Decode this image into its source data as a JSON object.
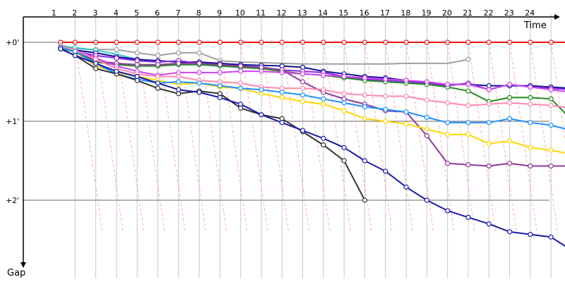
{
  "chart_data": {
    "type": "line",
    "x_axis_label": "Time",
    "y_axis_label": "Gap",
    "x_ticks": [
      "1",
      "2",
      "3",
      "4",
      "5",
      "6",
      "7",
      "8",
      "9",
      "10",
      "11",
      "12",
      "13",
      "14",
      "15",
      "16",
      "17",
      "18",
      "19",
      "20",
      "21",
      "22",
      "23",
      "24"
    ],
    "x_range": [
      0.25,
      25.6
    ],
    "y_ticks": [
      "+0'",
      "+1'",
      "+2'"
    ],
    "y_tick_values": [
      0,
      60,
      120
    ],
    "y_range": [
      -6,
      160
    ],
    "grid": true,
    "grid_x_color": "#c8c8c8",
    "grid_y_color": "#646464",
    "annotation_line_color": "#ff9a9a",
    "series": [
      {
        "color": "#ee1111",
        "x": [
          0.3,
          1,
          2,
          3,
          4,
          5,
          6,
          7,
          8,
          9,
          10,
          11,
          12,
          13,
          14,
          15,
          16,
          17,
          18,
          19,
          20,
          21,
          22,
          23,
          24,
          25
        ],
        "y": [
          0,
          0,
          0,
          0,
          0,
          0,
          0,
          0,
          0,
          0,
          0,
          0,
          0,
          0,
          0,
          0,
          0,
          0,
          0,
          0,
          0,
          0,
          0,
          0,
          0,
          0
        ],
        "markers": [
          0.3,
          1,
          2,
          3,
          4,
          5,
          6,
          7,
          8,
          9,
          10,
          11,
          12,
          13,
          14,
          15,
          16,
          17,
          18,
          19,
          20,
          21,
          22,
          23,
          24,
          25
        ]
      },
      {
        "color": "#a0a0a0",
        "x": [
          0.3,
          1,
          2,
          3,
          4,
          5,
          6,
          7,
          8,
          9,
          10,
          11,
          12,
          13,
          14,
          15,
          16,
          17,
          18,
          19,
          20
        ],
        "y": [
          2,
          5,
          5.5,
          5.5,
          8,
          10,
          8,
          8,
          14,
          15,
          15.5,
          16,
          16.5,
          16.5,
          16.5,
          16.5,
          16.5,
          16,
          16,
          16,
          13
        ],
        "markers": [
          0.3,
          2,
          3,
          4,
          5,
          6,
          7,
          8,
          20
        ]
      },
      {
        "color": "#30c8c8",
        "x": [
          0.3,
          1,
          2,
          3,
          4
        ],
        "y": [
          3,
          4,
          6,
          9,
          13
        ],
        "markers": [
          0.3,
          1,
          2,
          3,
          4
        ]
      },
      {
        "color": "#111199",
        "x": [
          0.3,
          1,
          2,
          3,
          4,
          5,
          6,
          7,
          8,
          9,
          10,
          11,
          12,
          13,
          14,
          15,
          16,
          17,
          18,
          19,
          20,
          21,
          22,
          23,
          24,
          25
        ],
        "y": [
          4,
          6,
          8,
          11,
          13,
          14,
          15,
          15,
          16,
          17,
          17.5,
          18,
          19,
          22,
          24,
          26,
          27,
          29,
          31,
          32,
          32,
          33,
          33,
          33,
          34,
          35
        ],
        "markers": [
          0.3,
          1,
          2,
          3,
          4,
          5,
          6,
          7,
          8,
          9,
          10,
          11,
          12,
          13,
          14,
          15,
          16,
          17,
          18,
          19,
          20,
          21,
          22,
          23,
          24,
          25
        ]
      },
      {
        "color": "#8a2be2",
        "x": [
          0.3,
          1,
          2,
          3,
          4,
          5,
          6,
          7,
          8,
          9,
          10,
          11,
          12,
          13,
          14,
          15,
          16,
          17,
          18,
          19,
          20,
          21,
          22,
          23,
          24,
          25
        ],
        "y": [
          3,
          7,
          10,
          12,
          14,
          15,
          14,
          16,
          17,
          18,
          19,
          21,
          22,
          23,
          26,
          28,
          29,
          30,
          31,
          33,
          31,
          36,
          32,
          34,
          35,
          36
        ],
        "markers": [
          0.3,
          1,
          2,
          3,
          4,
          5,
          6,
          7,
          8,
          9,
          10,
          11,
          12,
          13,
          14,
          15,
          16,
          17,
          18,
          19,
          20,
          21,
          22,
          23,
          24,
          25
        ]
      },
      {
        "color": "#228b22",
        "x": [
          0.3,
          1,
          2,
          3,
          4,
          5,
          6,
          7,
          8,
          9,
          10,
          11,
          12,
          13,
          14,
          15,
          16,
          17,
          18,
          19,
          20,
          21,
          22,
          23,
          24,
          25
        ],
        "y": [
          5,
          7,
          15,
          17,
          18,
          18,
          17,
          17,
          18,
          19,
          20,
          22,
          24,
          25,
          27,
          29,
          30,
          31,
          32,
          34,
          37,
          45,
          42,
          42,
          43,
          59
        ],
        "markers": [
          0.3,
          1,
          2,
          3,
          4,
          5,
          6,
          7,
          8,
          9,
          10,
          11,
          12,
          13,
          14,
          15,
          16,
          17,
          18,
          19,
          20,
          21,
          22,
          23,
          24,
          25
        ]
      },
      {
        "color": "#8b3a9a",
        "x": [
          0.3,
          1,
          2,
          3,
          4,
          5,
          6,
          7,
          8,
          9,
          10,
          11,
          12,
          13,
          14,
          15,
          16,
          17,
          18,
          19,
          20,
          21,
          22,
          23,
          24,
          25
        ],
        "y": [
          4,
          6,
          14,
          16,
          17,
          17,
          16,
          16,
          17,
          18,
          19,
          21,
          30,
          38,
          43,
          47,
          52,
          53,
          71,
          92,
          93,
          94,
          92,
          94,
          94,
          94
        ],
        "markers": [
          0.3,
          1,
          2,
          3,
          4,
          5,
          6,
          7,
          8,
          9,
          10,
          11,
          12,
          13,
          14,
          15,
          16,
          17,
          18,
          19,
          20,
          21,
          22,
          23,
          24,
          25
        ]
      },
      {
        "color": "#cc44ee",
        "x": [
          0.3,
          1,
          2,
          3,
          4,
          5,
          6,
          7,
          8,
          9,
          10,
          11,
          12,
          13,
          14,
          15,
          16,
          17,
          18,
          19,
          20,
          21,
          22,
          23,
          24,
          25
        ],
        "y": [
          3,
          6,
          12,
          18,
          22,
          25,
          23,
          23,
          23,
          22,
          22,
          23,
          24,
          25,
          26,
          27,
          28,
          29,
          30,
          32,
          32,
          36,
          32,
          34,
          36,
          38
        ],
        "markers": [
          0.3,
          1,
          2,
          3,
          4,
          5,
          6,
          7,
          8,
          9,
          10,
          11,
          12,
          13,
          14,
          15,
          16,
          17,
          18,
          19,
          20,
          21,
          22,
          23,
          24,
          25
        ]
      },
      {
        "color": "#ff88b0",
        "x": [
          0.3,
          1,
          2,
          3,
          4,
          5,
          6,
          7,
          8,
          9,
          10,
          11,
          12,
          13,
          14,
          15,
          16,
          17,
          18,
          19,
          20,
          21,
          22,
          23,
          24,
          25
        ],
        "y": [
          3,
          6,
          13,
          20,
          24,
          26,
          26,
          29,
          30,
          31,
          34,
          35,
          35,
          36,
          39,
          40,
          41,
          41,
          44,
          46,
          48,
          47,
          46,
          47,
          48,
          50
        ],
        "markers": [
          0.3,
          1,
          2,
          3,
          4,
          5,
          6,
          7,
          8,
          9,
          10,
          11,
          12,
          13,
          14,
          15,
          16,
          17,
          18,
          19,
          20,
          21,
          22,
          23,
          24,
          25
        ]
      },
      {
        "color": "#ffd700",
        "x": [
          0.3,
          1,
          2,
          3,
          4,
          5,
          6,
          7,
          8,
          9,
          10,
          11,
          12,
          13,
          14,
          15,
          16,
          17,
          18,
          19,
          20,
          21,
          22,
          23,
          24,
          25
        ],
        "y": [
          4,
          7,
          18,
          23,
          26,
          29,
          32,
          31,
          34,
          35,
          39,
          42,
          45,
          47,
          52,
          58,
          60,
          62,
          66,
          70,
          70,
          77,
          75,
          80,
          82,
          85
        ],
        "markers": [
          0.3,
          1,
          2,
          3,
          4,
          5,
          6,
          7,
          8,
          9,
          10,
          11,
          12,
          13,
          14,
          15,
          16,
          17,
          18,
          19,
          20,
          21,
          22,
          23,
          24,
          25
        ]
      },
      {
        "color": "#1e90ff",
        "x": [
          0.3,
          1,
          2,
          3,
          4,
          5,
          6,
          7,
          8,
          9,
          10,
          11,
          12,
          13,
          14,
          15,
          16,
          17,
          18,
          19,
          20,
          21,
          22,
          23,
          24,
          25
        ],
        "y": [
          4,
          7,
          16,
          24,
          28,
          31,
          30,
          31,
          33,
          35,
          36,
          38,
          40,
          43,
          46,
          49,
          51,
          53,
          57,
          61,
          61,
          61,
          58,
          61,
          63,
          67
        ],
        "markers": [
          0.3,
          1,
          2,
          3,
          4,
          5,
          6,
          7,
          8,
          9,
          10,
          11,
          12,
          13,
          14,
          15,
          16,
          17,
          18,
          19,
          20,
          21,
          22,
          23,
          24,
          25
        ]
      },
      {
        "color": "#333333",
        "x": [
          0.3,
          1,
          2,
          3,
          4,
          5,
          6,
          7,
          8,
          9,
          10,
          11,
          12,
          13,
          14,
          15
        ],
        "y": [
          5,
          10,
          20,
          24,
          29,
          35,
          39,
          37,
          39,
          50,
          55,
          58,
          68,
          78,
          90,
          120
        ],
        "markers": [
          0.3,
          1,
          2,
          3,
          4,
          5,
          6,
          7,
          8,
          9,
          10,
          11,
          12,
          13,
          14,
          15
        ]
      },
      {
        "color": "#1a1aaa",
        "x": [
          0.3,
          1,
          2,
          3,
          4,
          5,
          6,
          7,
          8,
          9,
          10,
          11,
          12,
          13,
          14,
          15,
          16,
          17,
          18,
          19,
          20,
          21,
          22,
          23,
          24,
          25
        ],
        "y": [
          5,
          10,
          16,
          22,
          26,
          31,
          36,
          38,
          42,
          47,
          55,
          61,
          67,
          73,
          80,
          90,
          98,
          110,
          120,
          128,
          133,
          138,
          144,
          146,
          148,
          158
        ],
        "markers": [
          0.3,
          1,
          2,
          3,
          4,
          5,
          6,
          7,
          8,
          9,
          10,
          11,
          12,
          13,
          14,
          15,
          16,
          17,
          18,
          19,
          20,
          21,
          22,
          23,
          24,
          25
        ]
      }
    ]
  }
}
